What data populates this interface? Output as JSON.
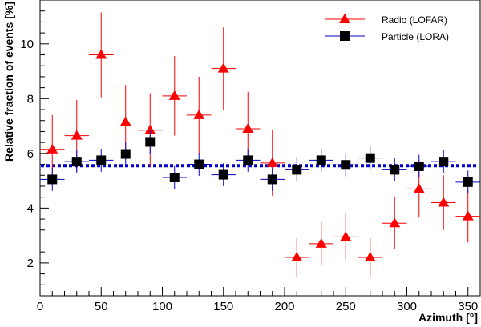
{
  "chart_data": {
    "type": "scatter",
    "title": "",
    "xlabel": "Azimuth [°]",
    "ylabel": "Relative fraction of events [%]",
    "xlim": [
      0,
      360
    ],
    "ylim": [
      0.8,
      11.6
    ],
    "xticks": [
      0,
      50,
      100,
      150,
      200,
      250,
      300,
      350
    ],
    "yticks": [
      2,
      4,
      6,
      8,
      10
    ],
    "grid": false,
    "legend": "top-right",
    "bin_half_width": 10,
    "series": [
      {
        "name": "Radio (LOFAR)",
        "marker": "triangle",
        "color": "#ff0000",
        "x": [
          10,
          30,
          50,
          70,
          90,
          110,
          130,
          150,
          170,
          190,
          210,
          230,
          250,
          270,
          290,
          310,
          330,
          350
        ],
        "y": [
          6.15,
          6.65,
          9.6,
          7.15,
          6.85,
          8.1,
          7.4,
          9.1,
          6.9,
          5.65,
          2.2,
          2.7,
          2.95,
          2.2,
          3.45,
          4.7,
          4.2,
          3.7
        ],
        "yerr": [
          1.25,
          1.3,
          1.55,
          1.35,
          1.35,
          1.45,
          1.4,
          1.5,
          1.35,
          1.2,
          0.7,
          0.8,
          0.85,
          0.7,
          0.95,
          1.05,
          1.0,
          0.95
        ]
      },
      {
        "name": "Particle (LORA)",
        "marker": "square",
        "color": "#000000",
        "errcolor": "#0000cc",
        "x": [
          10,
          30,
          50,
          70,
          90,
          110,
          130,
          150,
          170,
          190,
          210,
          230,
          250,
          270,
          290,
          310,
          330,
          350
        ],
        "y": [
          5.05,
          5.7,
          5.75,
          5.98,
          6.42,
          5.12,
          5.6,
          5.22,
          5.75,
          5.05,
          5.4,
          5.75,
          5.58,
          5.83,
          5.4,
          5.53,
          5.7,
          4.95
        ],
        "yerr": [
          0.42,
          0.42,
          0.42,
          0.42,
          0.45,
          0.42,
          0.42,
          0.42,
          0.42,
          0.42,
          0.42,
          0.42,
          0.42,
          0.42,
          0.42,
          0.42,
          0.42,
          0.42
        ]
      }
    ],
    "reference_line": {
      "y": 5.55,
      "style": "dotted",
      "color": "#0000cc"
    }
  }
}
